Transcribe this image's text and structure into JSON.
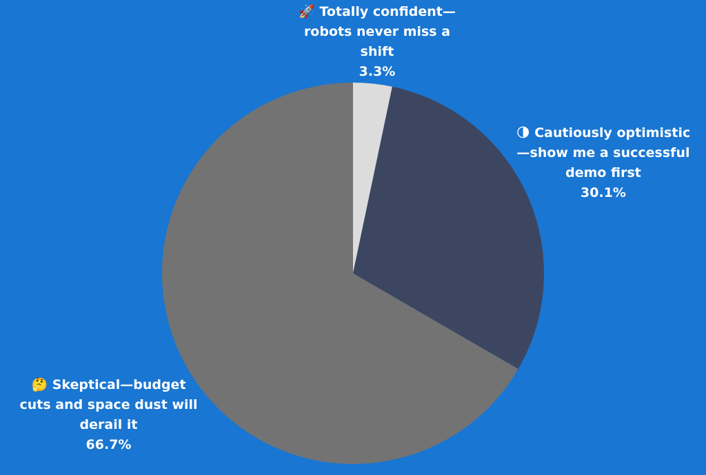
{
  "chart_data": {
    "type": "pie",
    "categories": [
      "🚀 Totally confident—robots never miss a shift",
      "🌗 Cautiously optimistic—show me a successful demo first",
      "🤔 Skeptical—budget cuts and space dust will derail it"
    ],
    "values": [
      3.3,
      30.1,
      66.7
    ],
    "value_labels": [
      "3.3%",
      "30.1%",
      "66.7%"
    ],
    "colors": [
      "#dcdcdc",
      "#3d4660",
      "#737373"
    ]
  }
}
